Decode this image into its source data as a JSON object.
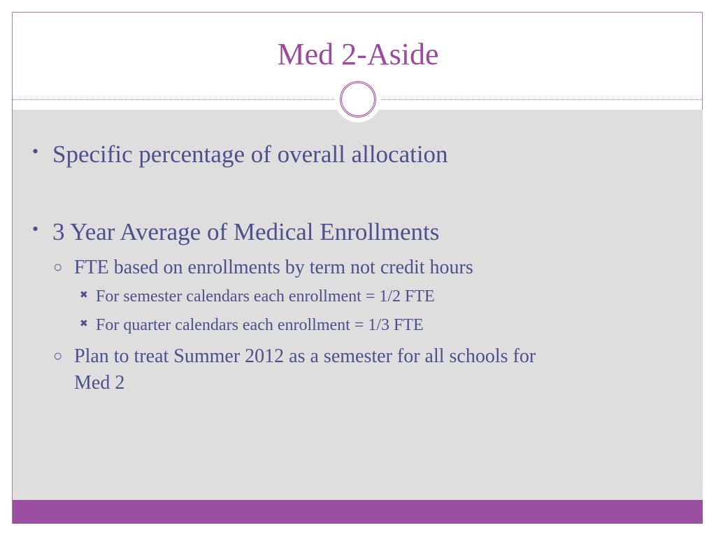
{
  "slide": {
    "title": "Med 2-Aside",
    "bullets": [
      {
        "text": "Specific percentage of overall allocation"
      },
      {
        "text": "3 Year Average of Medical Enrollments"
      },
      {
        "text": "FTE based on enrollments by term not credit hours"
      },
      {
        "text": "For semester calendars each enrollment = 1/2 FTE"
      },
      {
        "text": "For quarter calendars each enrollment = 1/3 FTE"
      },
      {
        "text": "Plan to treat Summer 2012 as a semester for all schools for",
        "cont": "Med 2"
      }
    ],
    "colors": {
      "title": "#9b4a9e",
      "text": "#4e4f8c",
      "body_bg": "#dedede",
      "footer": "#9b4fa0"
    }
  }
}
